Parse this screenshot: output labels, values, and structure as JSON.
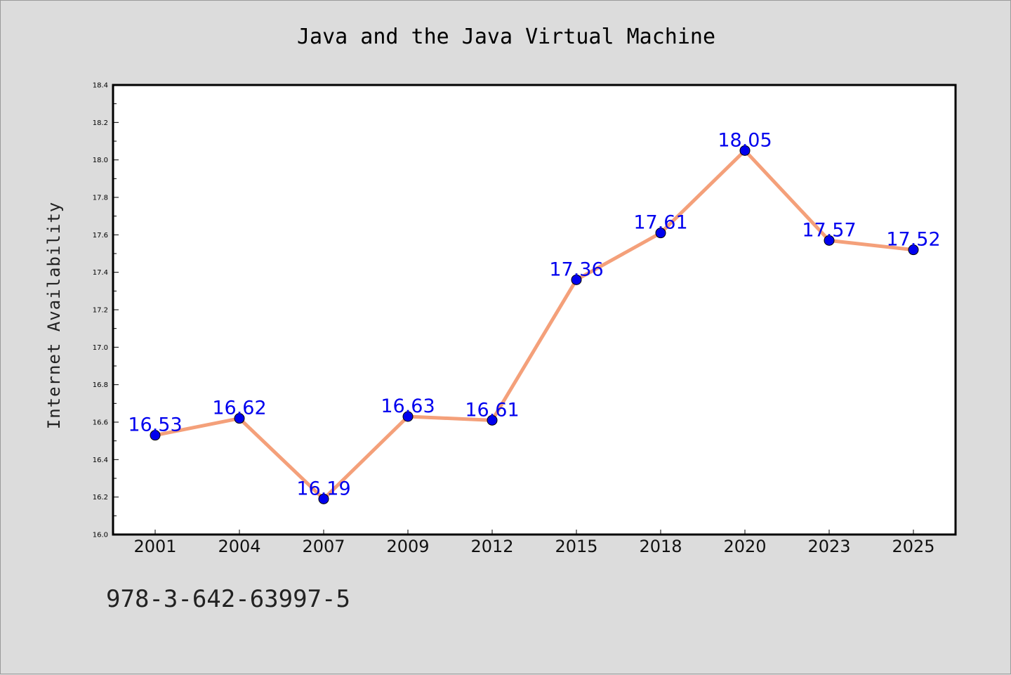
{
  "chart_data": {
    "type": "line",
    "title": "Java and the Java Virtual Machine",
    "xlabel": "",
    "ylabel": "Internet Availability",
    "categories": [
      "2001",
      "2004",
      "2007",
      "2009",
      "2012",
      "2015",
      "2018",
      "2020",
      "2023",
      "2025"
    ],
    "series": [
      {
        "values": [
          16.53,
          16.62,
          16.19,
          16.63,
          16.61,
          17.36,
          17.61,
          18.05,
          17.57,
          17.52
        ]
      }
    ],
    "data_labels": [
      "16.53",
      "16.62",
      "16.19",
      "16.63",
      "16.61",
      "17.36",
      "17.61",
      "18.05",
      "17.57",
      "17.52"
    ],
    "ylim": [
      16.0,
      18.4
    ],
    "y_ticks": [
      "16.0",
      "16.2",
      "16.4",
      "16.6",
      "16.8",
      "17.0",
      "17.2",
      "17.4",
      "17.6",
      "17.8",
      "18.0",
      "18.2",
      "18.4"
    ],
    "grid": false,
    "legend": "none",
    "colors": {
      "line": "#f4a07a",
      "marker": "#0000ee",
      "label": "#0000ee",
      "plot_bg": "#ffffff",
      "page_bg": "#dcdcdc"
    }
  },
  "footer": {
    "code": "978-3-642-63997-5"
  }
}
